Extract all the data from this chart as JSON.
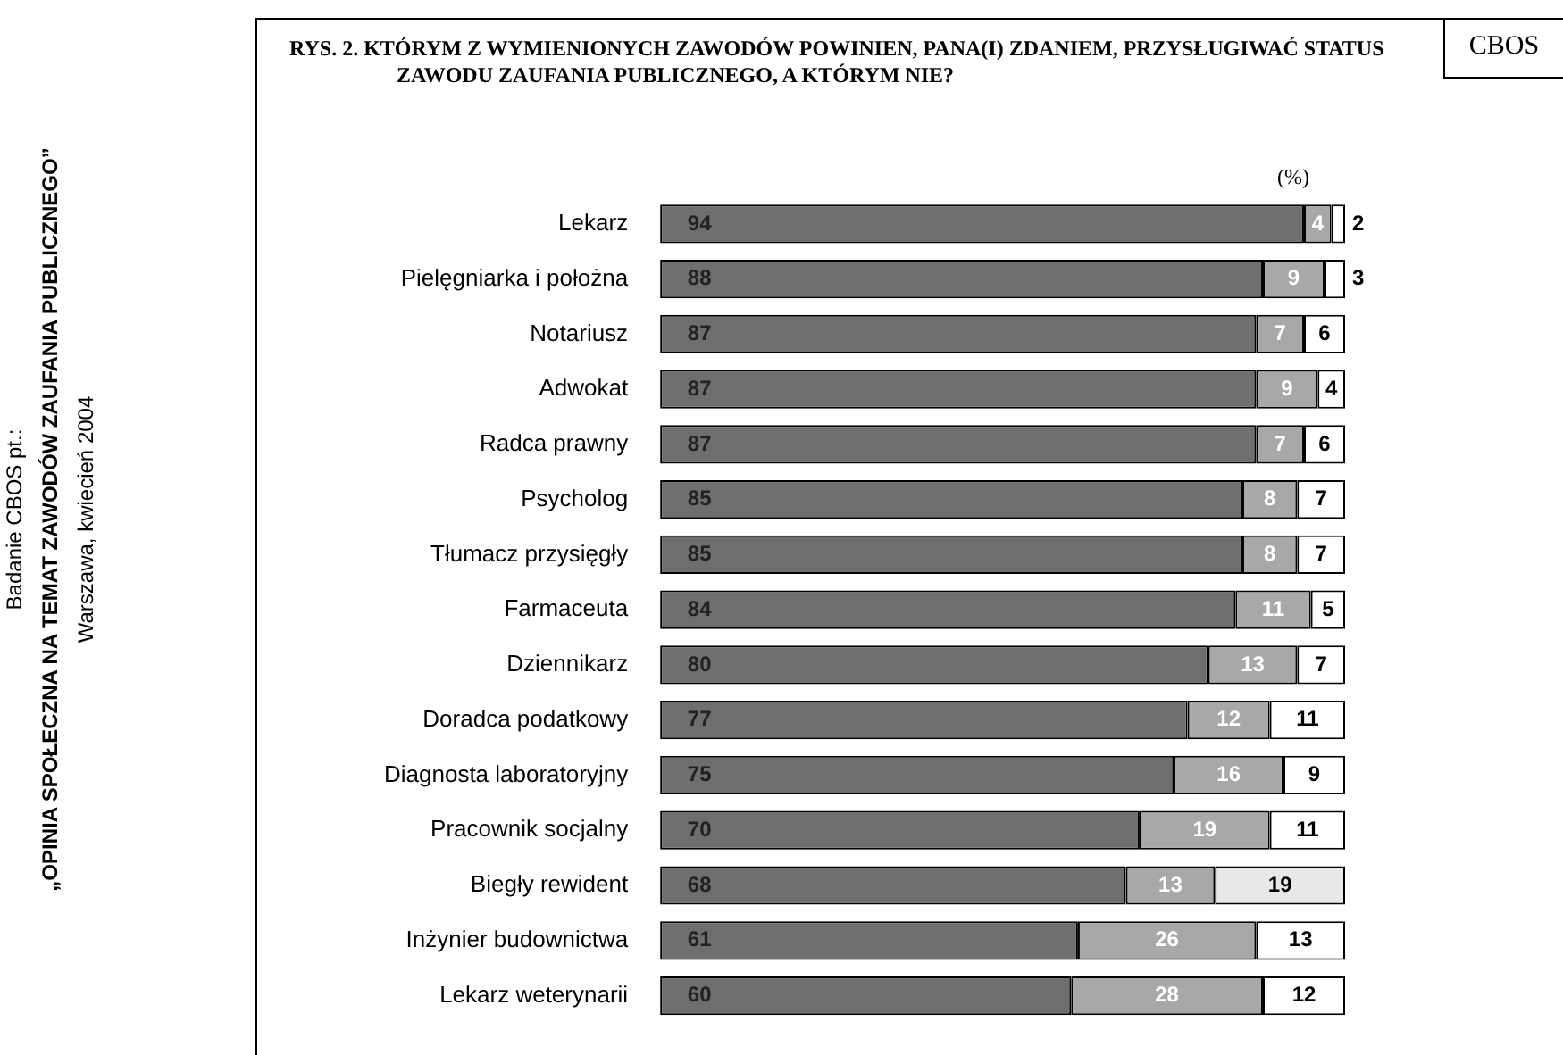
{
  "chart_data": {
    "type": "bar",
    "orientation": "horizontal",
    "stacked": true,
    "title": "RYS. 2. KTÓRYM Z WYMIENIONYCH ZAWODÓW POWINIEN, PANA(I) ZDANIEM, PRZYSŁUGIWAĆ STATUS ZAWODU ZAUFANIA PUBLICZNEGO, A KTÓRYM NIE?",
    "annotations": [
      "(%)",
      "CBOS",
      "Badanie CBOS pt.:",
      "„OPINIA SPOŁECZNA NA TEMAT ZAWODÓW ZAUFANIA PUBLICZNEGO”",
      "Warszawa, kwiecień 2004"
    ],
    "categories": [
      "Lekarz",
      "Pielęgniarka i położna",
      "Notariusz",
      "Adwokat",
      "Radca prawny",
      "Psycholog",
      "Tłumacz przysięgły",
      "Farmaceuta",
      "Dziennikarz",
      "Doradca podatkowy",
      "Diagnosta laboratoryjny",
      "Pracownik socjalny",
      "Biegły rewident",
      "Inżynier budownictwa",
      "Lekarz weterynarii"
    ],
    "series": [
      {
        "color": "#6e6e6e",
        "values": [
          94,
          88,
          87,
          87,
          87,
          85,
          85,
          84,
          80,
          77,
          75,
          70,
          68,
          61,
          60
        ]
      },
      {
        "color": "#a8a8a8",
        "values": [
          4,
          9,
          7,
          9,
          7,
          8,
          8,
          11,
          13,
          12,
          16,
          19,
          13,
          26,
          28
        ]
      },
      {
        "color": "#ffffff",
        "colors": [
          null,
          null,
          null,
          null,
          null,
          null,
          null,
          null,
          null,
          null,
          null,
          null,
          "#e8e8e8",
          null,
          null
        ],
        "values": [
          2,
          3,
          6,
          4,
          6,
          7,
          7,
          5,
          7,
          11,
          9,
          11,
          19,
          13,
          12
        ]
      }
    ],
    "xlim": [
      0,
      100
    ],
    "tick_labels": false,
    "data_labels": true,
    "legend": false
  }
}
